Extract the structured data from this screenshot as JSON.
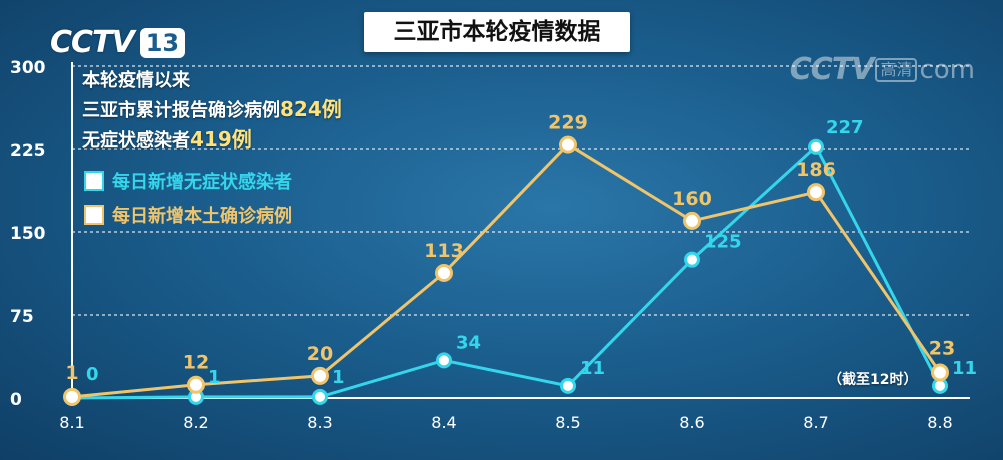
{
  "logos": {
    "left_mark": "CCTV",
    "left_channel": "13",
    "right_mark": "CCTV",
    "right_hd": "高清",
    "right_com": "com"
  },
  "title": "三亚市本轮疫情数据",
  "stats": {
    "line1": "本轮疫情以来",
    "line2_prefix": "三亚市累计报告确诊病例",
    "line2_value": "824例",
    "line3_prefix": "无症状感染者",
    "line3_value": "419例"
  },
  "note": "（截至12时）",
  "colors": {
    "asymptomatic": "#34d6ec",
    "confirmed": "#f0c46a",
    "grid": "#ffffff"
  },
  "chart_data": {
    "type": "line",
    "categories": [
      "8.1",
      "8.2",
      "8.3",
      "8.4",
      "8.5",
      "8.6",
      "8.7",
      "8.8"
    ],
    "ylim": [
      0,
      300
    ],
    "yticks": [
      0,
      75,
      150,
      225,
      300
    ],
    "grid": true,
    "legend_position": "top-left",
    "series": [
      {
        "name": "每日新增无症状感染者",
        "key": "asymptomatic",
        "values": [
          0,
          1,
          1,
          34,
          11,
          125,
          227,
          11
        ]
      },
      {
        "name": "每日新增本土确诊病例",
        "key": "confirmed",
        "values": [
          1,
          12,
          20,
          113,
          229,
          160,
          186,
          23
        ]
      }
    ]
  }
}
